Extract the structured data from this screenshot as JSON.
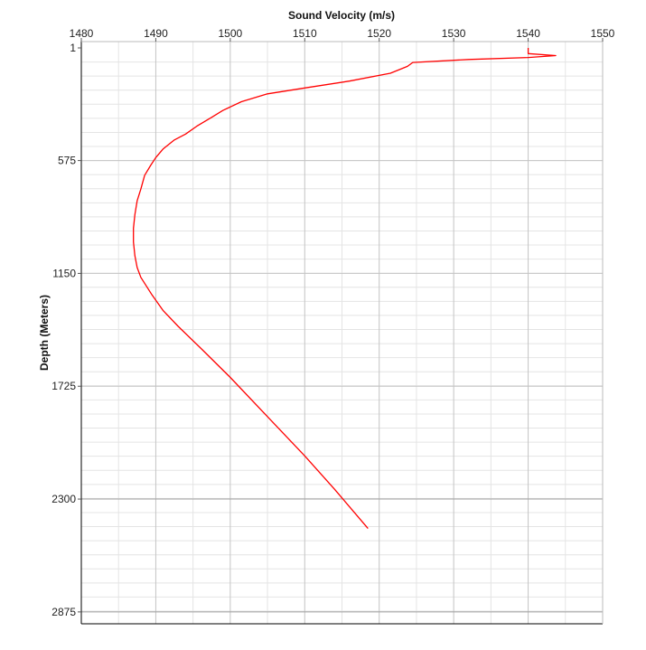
{
  "chart_data": {
    "type": "line",
    "title": "",
    "xlabel": "Sound Velocity (m/s)",
    "ylabel": "Depth (Meters)",
    "x_axis_position": "top",
    "y_axis_inverted": true,
    "xlim": [
      1480,
      1550
    ],
    "ylim": [
      1,
      2990
    ],
    "x_ticks": [
      "1480",
      "1490",
      "1500",
      "1510",
      "1520",
      "1530",
      "1540",
      "1550"
    ],
    "y_ticks": [
      "1",
      "575",
      "1150",
      "1725",
      "2300",
      "2875"
    ],
    "grid": true,
    "line_color": "#ff0000",
    "series": [
      {
        "x": [
          1540.0,
          1540.0,
          1543.7,
          1540.0,
          1532.0,
          1524.5,
          1523.8,
          1521.5,
          1516.0,
          1510.0,
          1505.0,
          1501.5,
          1499.0,
          1497.5,
          1495.5,
          1494.0,
          1492.5,
          1491.0,
          1490.0,
          1489.3,
          1488.5,
          1488.0,
          1487.5,
          1487.2,
          1487.0,
          1487.0,
          1487.2,
          1487.5,
          1488.0,
          1489.5,
          1491.0,
          1493.0,
          1496.0,
          1500.0,
          1505.0,
          1510.0,
          1514.0,
          1518.5
        ],
        "y": [
          1,
          30,
          40,
          50,
          60,
          75,
          95,
          130,
          170,
          205,
          235,
          275,
          320,
          355,
          400,
          440,
          470,
          515,
          560,
          600,
          650,
          720,
          780,
          850,
          920,
          990,
          1060,
          1120,
          1170,
          1260,
          1340,
          1420,
          1530,
          1680,
          1880,
          2080,
          2250,
          2450
        ]
      }
    ]
  }
}
